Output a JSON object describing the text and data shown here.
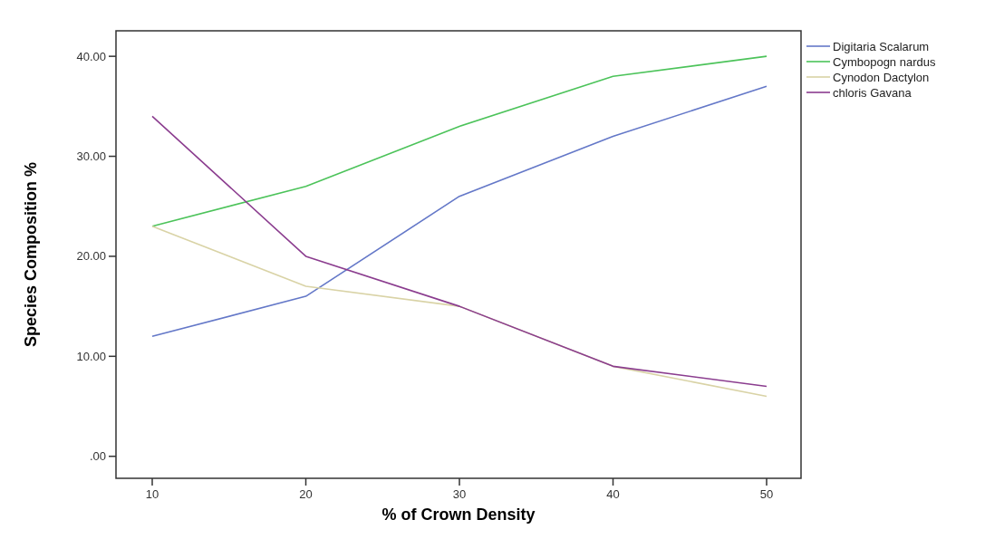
{
  "chart_data": {
    "type": "line",
    "xlabel": "% of Crown Density",
    "ylabel": "Species Composition %",
    "x": [
      10,
      20,
      30,
      40,
      50
    ],
    "xlim": [
      7.64,
      52.24
    ],
    "xticks": [
      10,
      20,
      30,
      40,
      50
    ],
    "ylim": [
      -2.2,
      42.55
    ],
    "yticks": [
      {
        "value": 0,
        "label": ".00"
      },
      {
        "value": 10,
        "label": "10.00"
      },
      {
        "value": 20,
        "label": "20.00"
      },
      {
        "value": 30,
        "label": "30.00"
      },
      {
        "value": 40,
        "label": "40.00"
      }
    ],
    "series": [
      {
        "name": "Digitaria Scalarum",
        "color": "#6478c8",
        "values": [
          12,
          16,
          26,
          32,
          37
        ]
      },
      {
        "name": "Cymbopogn nardus",
        "color": "#4cc35a",
        "values": [
          23,
          27,
          33,
          38,
          40
        ]
      },
      {
        "name": "Cynodon Dactylon",
        "color": "#d9d3a6",
        "values": [
          23,
          17,
          15,
          9,
          6
        ]
      },
      {
        "name": "chloris Gavana",
        "color": "#8b3d8f",
        "values": [
          34,
          20,
          15,
          9,
          7
        ]
      }
    ],
    "legend": "right",
    "grid": false,
    "marker": "none",
    "line_style": "solid"
  }
}
